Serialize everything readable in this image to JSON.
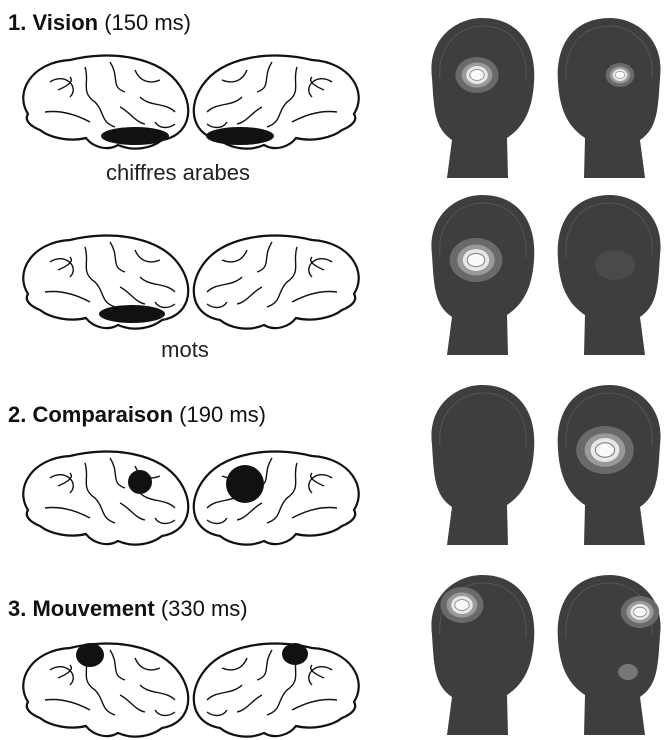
{
  "sections": [
    {
      "title": "1. Vision",
      "time": "(150 ms)",
      "labels": [
        "chiffres arabes",
        "mots"
      ]
    },
    {
      "title": "2. Comparaison",
      "time": "(190 ms)"
    },
    {
      "title": "3. Mouvement",
      "time": "(330 ms)"
    }
  ]
}
